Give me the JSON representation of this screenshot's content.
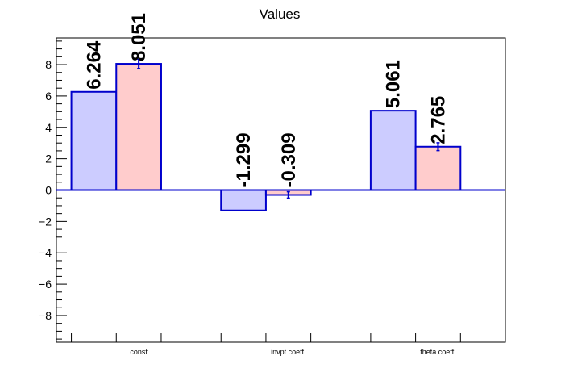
{
  "chart_data": {
    "type": "bar",
    "title": "Values",
    "xlabel": "",
    "ylabel": "",
    "categories": [
      "const",
      "invpt coeff.",
      "theta coeff."
    ],
    "series": [
      {
        "values": [
          6.264,
          -1.299,
          5.061
        ],
        "labels": [
          "6.264",
          "-1.299",
          "5.061"
        ],
        "errors": [
          0.0,
          0.0,
          0.0
        ],
        "fill": "#ccccff",
        "stroke": "#0000cc"
      },
      {
        "values": [
          8.051,
          -0.309,
          2.765
        ],
        "labels": [
          "8.051",
          "-0.309",
          "2.765"
        ],
        "errors": [
          0.3,
          0.2,
          0.25
        ],
        "fill": "#ffcccc",
        "stroke": "#0000cc"
      }
    ],
    "ylim": [
      -9.7,
      9.7
    ],
    "yticks": [
      -8,
      -6,
      -4,
      -2,
      0,
      2,
      4,
      6,
      8
    ],
    "ytick_labels": [
      "−8",
      "−6",
      "−4",
      "−2",
      "0",
      "2",
      "4",
      "6",
      "8"
    ],
    "grid": false,
    "legend": "none",
    "baseline_color": "#0000cc"
  }
}
